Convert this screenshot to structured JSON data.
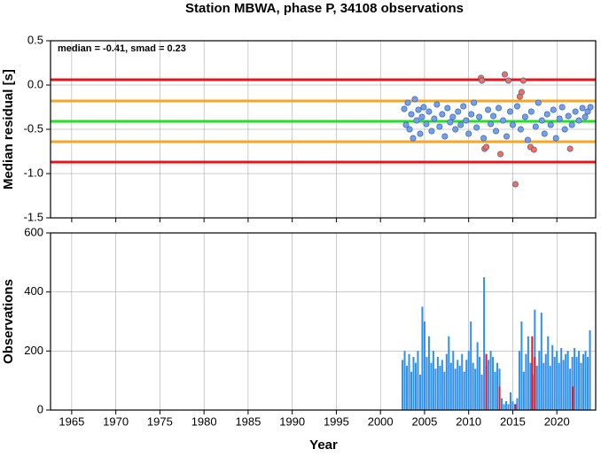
{
  "chart_data": [
    {
      "type": "scatter",
      "title": "Station MBWA, phase P, 34108 observations",
      "ylabel": "Median residual [s]",
      "annotation": "median = -0.41, smad = 0.23",
      "xlim": [
        1962.6,
        2024.4
      ],
      "xticks": [
        1965,
        1970,
        1975,
        1980,
        1985,
        1990,
        1995,
        2000,
        2005,
        2010,
        2015,
        2020
      ],
      "ylim": [
        -1.5,
        0.5
      ],
      "yticks": [
        0.5,
        {
          "value": 0,
          "label": "0.0"
        },
        -0.5,
        {
          "value": -1,
          "label": "-1.0"
        },
        -1.5
      ],
      "grid": true,
      "hlines": [
        {
          "value": 0.06,
          "color": "#e8141c"
        },
        {
          "value": -0.18,
          "color": "#f5a623"
        },
        {
          "value": -0.41,
          "color": "#22e022"
        },
        {
          "value": -0.64,
          "color": "#f5a623"
        },
        {
          "value": -0.87,
          "color": "#e8141c"
        }
      ],
      "series": [
        {
          "color": "#6fa0f0",
          "x": [
            2002.7,
            2002.9,
            2003.1,
            2003.3,
            2003.5,
            2003.7,
            2003.9,
            2004.1,
            2004.3,
            2004.5,
            2004.7,
            2004.9,
            2005.2,
            2005.5,
            2005.8,
            2006.1,
            2006.4,
            2006.7,
            2007.0,
            2007.3,
            2007.6,
            2007.9,
            2008.2,
            2008.5,
            2008.8,
            2009.1,
            2009.4,
            2009.7,
            2010.0,
            2010.3,
            2010.6,
            2010.9,
            2011.2,
            2011.7,
            2012.2,
            2012.5,
            2012.8,
            2013.1,
            2013.4,
            2013.9,
            2014.3,
            2014.7,
            2015.0,
            2015.5,
            2015.9,
            2016.4,
            2016.7,
            2017.1,
            2017.6,
            2017.9,
            2018.3,
            2018.6,
            2018.9,
            2019.3,
            2019.6,
            2019.9,
            2020.3,
            2020.6,
            2020.9,
            2021.3,
            2021.7,
            2022.1,
            2022.5,
            2022.9,
            2023.2,
            2023.5,
            2023.8
          ],
          "values": [
            -0.27,
            -0.45,
            -0.2,
            -0.5,
            -0.33,
            -0.6,
            -0.16,
            -0.4,
            -0.28,
            -0.55,
            -0.36,
            -0.25,
            -0.44,
            -0.3,
            -0.52,
            -0.38,
            -0.22,
            -0.47,
            -0.33,
            -0.58,
            -0.26,
            -0.42,
            -0.36,
            -0.5,
            -0.3,
            -0.45,
            -0.24,
            -0.4,
            -0.55,
            -0.33,
            -0.2,
            -0.48,
            -0.36,
            -0.6,
            -0.28,
            -0.44,
            -0.35,
            -0.52,
            -0.26,
            -0.4,
            -0.58,
            -0.3,
            -0.45,
            -0.24,
            -0.5,
            -0.36,
            -0.62,
            -0.3,
            -0.47,
            -0.2,
            -0.4,
            -0.55,
            -0.33,
            -0.45,
            -0.28,
            -0.6,
            -0.38,
            -0.25,
            -0.5,
            -0.35,
            -0.45,
            -0.3,
            -0.4,
            -0.26,
            -0.36,
            -0.3,
            -0.25
          ]
        },
        {
          "color": "#f07060",
          "x": [
            2011.4,
            2011.5,
            2011.8,
            2012.0,
            2013.6,
            2014.1,
            2014.5,
            2015.3,
            2015.8,
            2016.0,
            2016.2,
            2017.0,
            2017.4,
            2021.5
          ],
          "values": [
            0.08,
            0.05,
            -0.72,
            -0.7,
            -0.78,
            0.12,
            0.05,
            -1.12,
            -0.13,
            -0.08,
            0.05,
            -0.7,
            -0.73,
            -0.72
          ]
        }
      ]
    },
    {
      "type": "bar",
      "ylabel": "Observations",
      "xlabel": "Year",
      "xlim": [
        1962.6,
        2024.4
      ],
      "xticks": [
        1965,
        1970,
        1975,
        1980,
        1985,
        1990,
        1995,
        2000,
        2005,
        2010,
        2015,
        2020
      ],
      "ylim": [
        0,
        600
      ],
      "yticks": [
        0,
        200,
        400,
        600
      ],
      "grid": true,
      "series": [
        {
          "color": "#2f8ff0",
          "x": [
            2002.5,
            2002.75,
            2003,
            2003.25,
            2003.5,
            2003.75,
            2004,
            2004.25,
            2004.5,
            2004.75,
            2005,
            2005.25,
            2005.5,
            2005.75,
            2006,
            2006.25,
            2006.5,
            2006.75,
            2007,
            2007.25,
            2007.5,
            2007.75,
            2008,
            2008.25,
            2008.5,
            2008.75,
            2009,
            2009.25,
            2009.5,
            2009.75,
            2010,
            2010.25,
            2010.5,
            2010.75,
            2011,
            2011.25,
            2011.5,
            2011.75,
            2012,
            2012.25,
            2012.5,
            2012.75,
            2013,
            2013.25,
            2013.5,
            2013.75,
            2014,
            2014.25,
            2014.5,
            2014.75,
            2015,
            2015.25,
            2015.5,
            2015.75,
            2016,
            2016.25,
            2016.5,
            2016.75,
            2017,
            2017.25,
            2017.5,
            2017.75,
            2018,
            2018.25,
            2018.5,
            2018.75,
            2019,
            2019.25,
            2019.5,
            2019.75,
            2020,
            2020.25,
            2020.5,
            2020.75,
            2021,
            2021.25,
            2021.5,
            2021.75,
            2022,
            2022.25,
            2022.5,
            2022.75,
            2023,
            2023.25,
            2023.5,
            2023.75
          ],
          "values": [
            170,
            200,
            150,
            190,
            130,
            180,
            160,
            200,
            120,
            350,
            300,
            180,
            250,
            160,
            200,
            140,
            180,
            150,
            170,
            130,
            190,
            250,
            160,
            200,
            140,
            170,
            150,
            190,
            130,
            170,
            200,
            300,
            160,
            140,
            230,
            180,
            120,
            450,
            150,
            170,
            200,
            180,
            130,
            160,
            140,
            40,
            20,
            30,
            20,
            60,
            30,
            20,
            40,
            200,
            300,
            130,
            190,
            250,
            160,
            120,
            340,
            150,
            200,
            330,
            160,
            190,
            250,
            150,
            220,
            180,
            200,
            160,
            210,
            170,
            190,
            200,
            140,
            180,
            210,
            180,
            200,
            160,
            190,
            200,
            180,
            270
          ]
        },
        {
          "color": "#e8141c",
          "x": [
            2012.0,
            2013.5,
            2015.3,
            2017.2,
            2017.5,
            2021.8
          ],
          "values": [
            190,
            80,
            20,
            250,
            180,
            80
          ]
        }
      ]
    }
  ]
}
